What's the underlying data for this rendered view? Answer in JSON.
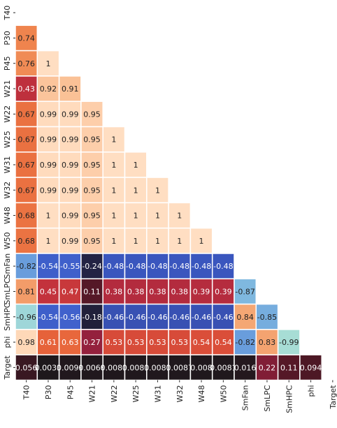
{
  "chart_data": {
    "type": "heatmap",
    "variables": [
      "T40",
      "P30",
      "P45",
      "W21",
      "W22",
      "W25",
      "W31",
      "W32",
      "W48",
      "W50",
      "SmFan",
      "SmLPC",
      "SmHPC",
      "phi",
      "Target"
    ],
    "cell_labels": [
      [],
      [
        "0.74"
      ],
      [
        "0.76",
        "1"
      ],
      [
        "0.43",
        "0.92",
        "0.91"
      ],
      [
        "0.67",
        "0.99",
        "0.99",
        "0.95"
      ],
      [
        "0.67",
        "0.99",
        "0.99",
        "0.95",
        "1"
      ],
      [
        "0.67",
        "0.99",
        "0.99",
        "0.95",
        "1",
        "1"
      ],
      [
        "0.67",
        "0.99",
        "0.99",
        "0.95",
        "1",
        "1",
        "1"
      ],
      [
        "0.68",
        "1",
        "0.99",
        "0.95",
        "1",
        "1",
        "1",
        "1"
      ],
      [
        "0.68",
        "1",
        "0.99",
        "0.95",
        "1",
        "1",
        "1",
        "1",
        "1"
      ],
      [
        "-0.82",
        "-0.54",
        "-0.55",
        "-0.24",
        "-0.48",
        "-0.48",
        "-0.48",
        "-0.48",
        "-0.48",
        "-0.48"
      ],
      [
        "0.81",
        "0.45",
        "0.47",
        "0.11",
        "0.38",
        "0.38",
        "0.38",
        "0.38",
        "0.39",
        "0.39",
        "-0.87"
      ],
      [
        "-0.96",
        "-0.54",
        "-0.56",
        "-0.18",
        "-0.46",
        "-0.46",
        "-0.46",
        "-0.46",
        "-0.46",
        "-0.46",
        "0.84",
        "-0.85"
      ],
      [
        "0.98",
        "0.61",
        "0.63",
        "0.27",
        "0.53",
        "0.53",
        "0.53",
        "0.53",
        "0.54",
        "0.54",
        "-0.82",
        "0.83",
        "-0.99"
      ],
      [
        "0.056",
        "0.0033",
        "0.0099",
        "0.0068",
        "0.0081",
        "0.0081",
        "0.0081",
        "0.0087",
        "0.008",
        "0.0081",
        "0.016",
        "0.22",
        "0.11",
        "0.094"
      ]
    ],
    "color_range": [
      -1,
      1
    ],
    "mask": "upper-triangle",
    "legend": "none"
  }
}
